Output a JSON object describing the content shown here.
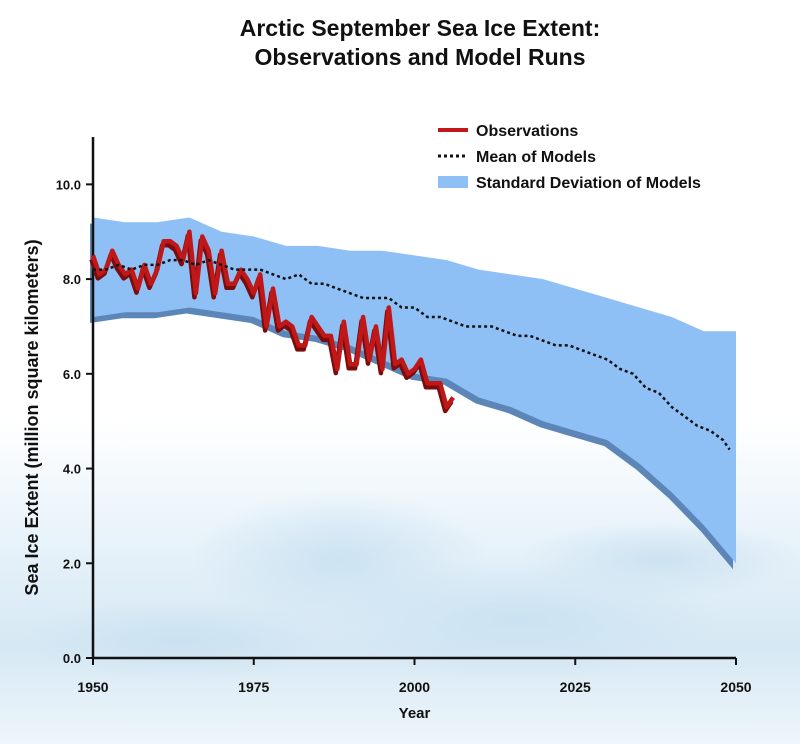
{
  "chart_data": {
    "type": "line",
    "title_lines": [
      "Arctic September Sea Ice Extent:",
      "Observations and Model Runs"
    ],
    "xlabel": "Year",
    "ylabel": "Sea Ice Extent (million square kilometers)",
    "xlim": [
      1950,
      2050
    ],
    "ylim": [
      0,
      11
    ],
    "xticks": [
      1950,
      1975,
      2000,
      2025,
      2050
    ],
    "xtick_labels": [
      "1950",
      "1975",
      "2000",
      "2025",
      "2050"
    ],
    "yticks": [
      0,
      2,
      4,
      6,
      8,
      10
    ],
    "ytick_labels": [
      "0.0",
      "2.0",
      "4.0",
      "6.0",
      "8.0",
      "10.0"
    ],
    "grid": false,
    "legend_position": "top-right",
    "legend": [
      {
        "label": "Observations",
        "style": "solid-line",
        "color": "#c01818"
      },
      {
        "label": "Mean of Models",
        "style": "dotted-line",
        "color": "#111111"
      },
      {
        "label": "Standard Deviation of Models",
        "style": "filled-band",
        "color": "#8ec0f6"
      }
    ],
    "series": [
      {
        "name": "Observations",
        "color": "#c01818",
        "x": [
          1950,
          1951,
          1952,
          1953,
          1954,
          1955,
          1956,
          1957,
          1958,
          1959,
          1960,
          1961,
          1962,
          1963,
          1964,
          1965,
          1966,
          1967,
          1968,
          1969,
          1970,
          1971,
          1972,
          1973,
          1974,
          1975,
          1976,
          1977,
          1978,
          1979,
          1980,
          1981,
          1982,
          1983,
          1984,
          1985,
          1986,
          1987,
          1988,
          1989,
          1990,
          1991,
          1992,
          1993,
          1994,
          1995,
          1996,
          1997,
          1998,
          1999,
          2000,
          2001,
          2002,
          2003,
          2004,
          2005,
          2006
        ],
        "y": [
          8.5,
          8.1,
          8.2,
          8.6,
          8.3,
          8.1,
          8.2,
          7.8,
          8.3,
          7.9,
          8.2,
          8.8,
          8.8,
          8.7,
          8.4,
          9.0,
          7.7,
          8.9,
          8.6,
          7.7,
          8.6,
          7.9,
          7.9,
          8.2,
          8.0,
          7.7,
          8.1,
          7.0,
          7.8,
          7.0,
          7.1,
          7.0,
          6.6,
          6.6,
          7.2,
          7.0,
          6.8,
          6.8,
          6.1,
          7.1,
          6.2,
          6.2,
          7.2,
          6.3,
          7.0,
          6.1,
          7.4,
          6.2,
          6.3,
          6.0,
          6.1,
          6.3,
          5.8,
          5.8,
          5.8,
          5.3,
          5.5
        ]
      },
      {
        "name": "Mean of Models",
        "color": "#111111",
        "x": [
          1950,
          1952,
          1954,
          1956,
          1958,
          1960,
          1962,
          1964,
          1966,
          1968,
          1970,
          1972,
          1974,
          1976,
          1978,
          1980,
          1982,
          1984,
          1986,
          1988,
          1990,
          1992,
          1994,
          1996,
          1998,
          2000,
          2002,
          2004,
          2006,
          2008,
          2010,
          2012,
          2014,
          2016,
          2018,
          2020,
          2022,
          2024,
          2026,
          2028,
          2030,
          2032,
          2034,
          2036,
          2038,
          2040,
          2042,
          2044,
          2046,
          2048,
          2049
        ],
        "y": [
          8.2,
          8.2,
          8.3,
          8.2,
          8.3,
          8.3,
          8.4,
          8.4,
          8.3,
          8.4,
          8.3,
          8.2,
          8.2,
          8.2,
          8.1,
          8.0,
          8.1,
          7.9,
          7.9,
          7.8,
          7.7,
          7.6,
          7.6,
          7.6,
          7.4,
          7.4,
          7.2,
          7.2,
          7.1,
          7.0,
          7.0,
          7.0,
          6.9,
          6.8,
          6.8,
          6.7,
          6.6,
          6.6,
          6.5,
          6.4,
          6.3,
          6.1,
          6.0,
          5.7,
          5.6,
          5.3,
          5.1,
          4.9,
          4.8,
          4.6,
          4.4
        ]
      }
    ],
    "band": {
      "name": "Standard Deviation of Models",
      "color": "#8ec0f6",
      "x": [
        1950,
        1955,
        1960,
        1965,
        1970,
        1975,
        1980,
        1985,
        1990,
        1995,
        2000,
        2005,
        2010,
        2015,
        2020,
        2025,
        2030,
        2035,
        2040,
        2045,
        2050
      ],
      "upper": [
        9.3,
        9.2,
        9.2,
        9.3,
        9.0,
        8.9,
        8.7,
        8.7,
        8.6,
        8.6,
        8.5,
        8.4,
        8.2,
        8.1,
        8.0,
        7.8,
        7.6,
        7.4,
        7.2,
        6.9,
        6.9
      ],
      "lower": [
        7.2,
        7.3,
        7.3,
        7.4,
        7.3,
        7.2,
        6.9,
        6.8,
        6.6,
        6.3,
        6.0,
        5.9,
        5.5,
        5.3,
        5.0,
        4.8,
        4.6,
        4.1,
        3.5,
        2.8,
        2.0
      ]
    }
  }
}
